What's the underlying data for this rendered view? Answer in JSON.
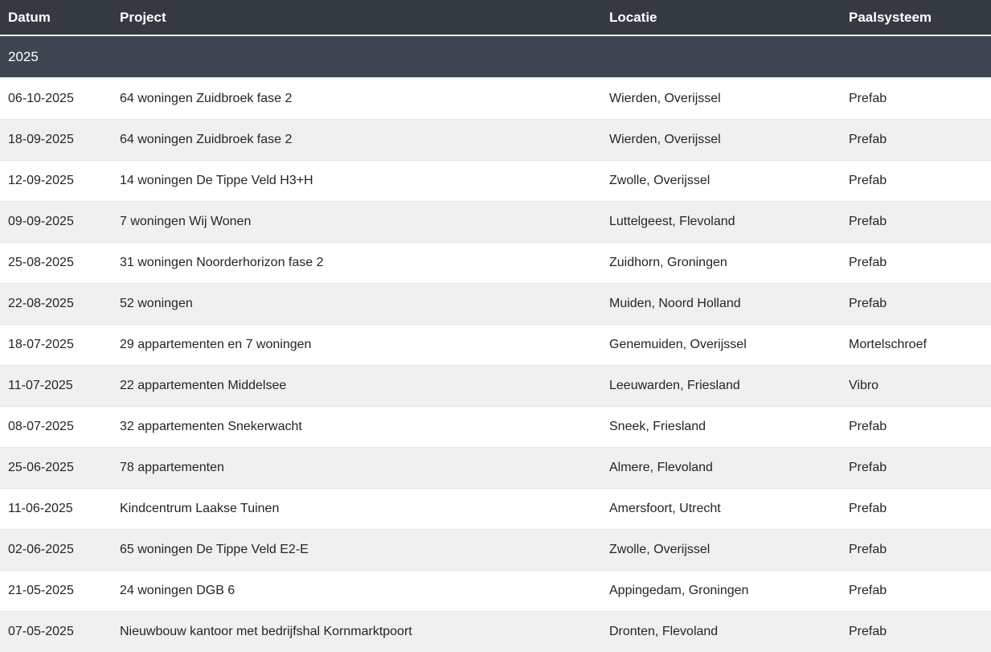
{
  "table": {
    "columns": [
      {
        "key": "datum",
        "label": "Datum"
      },
      {
        "key": "project",
        "label": "Project"
      },
      {
        "key": "locatie",
        "label": "Locatie"
      },
      {
        "key": "paalsysteem",
        "label": "Paalsysteem"
      }
    ],
    "year_group": "2025",
    "rows": [
      {
        "datum": "06-10-2025",
        "project": "64 woningen Zuidbroek fase 2",
        "locatie": "Wierden, Overijssel",
        "paalsysteem": "Prefab"
      },
      {
        "datum": "18-09-2025",
        "project": "64 woningen Zuidbroek fase 2",
        "locatie": "Wierden, Overijssel",
        "paalsysteem": "Prefab"
      },
      {
        "datum": "12-09-2025",
        "project": "14 woningen De Tippe Veld H3+H",
        "locatie": "Zwolle, Overijssel",
        "paalsysteem": "Prefab"
      },
      {
        "datum": "09-09-2025",
        "project": "7 woningen Wij Wonen",
        "locatie": "Luttelgeest, Flevoland",
        "paalsysteem": "Prefab"
      },
      {
        "datum": "25-08-2025",
        "project": "31 woningen Noorderhorizon fase 2",
        "locatie": "Zuidhorn, Groningen",
        "paalsysteem": "Prefab"
      },
      {
        "datum": "22-08-2025",
        "project": "52 woningen",
        "locatie": "Muiden, Noord Holland",
        "paalsysteem": "Prefab"
      },
      {
        "datum": "18-07-2025",
        "project": "29 appartementen en 7 woningen",
        "locatie": "Genemuiden, Overijssel",
        "paalsysteem": "Mortelschroef"
      },
      {
        "datum": "11-07-2025",
        "project": "22 appartementen Middelsee",
        "locatie": "Leeuwarden, Friesland",
        "paalsysteem": "Vibro"
      },
      {
        "datum": "08-07-2025",
        "project": "32 appartementen Snekerwacht",
        "locatie": "Sneek, Friesland",
        "paalsysteem": "Prefab"
      },
      {
        "datum": "25-06-2025",
        "project": "78 appartementen",
        "locatie": "Almere, Flevoland",
        "paalsysteem": "Prefab"
      },
      {
        "datum": "11-06-2025",
        "project": "Kindcentrum Laakse Tuinen",
        "locatie": "Amersfoort, Utrecht",
        "paalsysteem": "Prefab"
      },
      {
        "datum": "02-06-2025",
        "project": "65 woningen De Tippe Veld E2-E",
        "locatie": "Zwolle, Overijssel",
        "paalsysteem": "Prefab"
      },
      {
        "datum": "21-05-2025",
        "project": "24 woningen DGB 6",
        "locatie": "Appingedam, Groningen",
        "paalsysteem": "Prefab"
      },
      {
        "datum": "07-05-2025",
        "project": "Nieuwbouw kantoor met bedrijfshal Kornmarktpoort",
        "locatie": "Dronten, Flevoland",
        "paalsysteem": "Prefab"
      }
    ]
  },
  "colors": {
    "header_bg": "#343a40",
    "year_row_bg": "#3f4550",
    "stripe_bg": "#f0f0f1",
    "header_text": "#ffffff",
    "body_text": "#212529"
  }
}
